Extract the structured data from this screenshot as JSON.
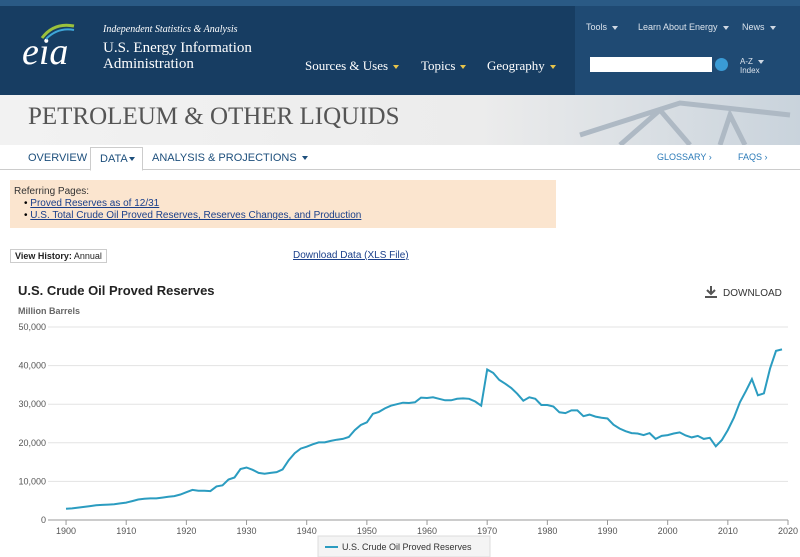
{
  "header": {
    "logo": "eia",
    "tagline": "Independent Statistics & Analysis",
    "agency_line1": "U.S. Energy Information",
    "agency_line2": "Administration",
    "nav": [
      "Sources & Uses",
      "Topics",
      "Geography"
    ],
    "top_links": [
      "Tools",
      "Learn About Energy",
      "News"
    ],
    "az": "A-Z",
    "index": "Index"
  },
  "banner": {
    "title": "PETROLEUM & OTHER LIQUIDS"
  },
  "tabs": [
    "OVERVIEW",
    "DATA",
    "ANALYSIS & PROJECTIONS"
  ],
  "right_links": [
    "GLOSSARY ›",
    "FAQS ›"
  ],
  "referring": {
    "heading": "Referring Pages:",
    "links": [
      "Proved Reserves as of 12/31",
      "U.S. Total Crude Oil Proved Reserves, Reserves Changes, and Production"
    ]
  },
  "view_history": {
    "label": "View History:",
    "value": "Annual"
  },
  "download_data": "Download Data (XLS File)",
  "download_button": "DOWNLOAD",
  "chart_data": {
    "type": "line",
    "title": "U.S. Crude Oil Proved Reserves",
    "y_axis_label": "Million Barrels",
    "x": [
      1900,
      1901,
      1902,
      1903,
      1904,
      1905,
      1906,
      1907,
      1908,
      1909,
      1910,
      1911,
      1912,
      1913,
      1914,
      1915,
      1916,
      1917,
      1918,
      1919,
      1920,
      1921,
      1922,
      1923,
      1924,
      1925,
      1926,
      1927,
      1928,
      1929,
      1930,
      1931,
      1932,
      1933,
      1934,
      1935,
      1936,
      1937,
      1938,
      1939,
      1940,
      1941,
      1942,
      1943,
      1944,
      1945,
      1946,
      1947,
      1948,
      1949,
      1950,
      1951,
      1952,
      1953,
      1954,
      1955,
      1956,
      1957,
      1958,
      1959,
      1960,
      1961,
      1962,
      1963,
      1964,
      1965,
      1966,
      1967,
      1968,
      1969,
      1970,
      1971,
      1972,
      1973,
      1974,
      1975,
      1976,
      1977,
      1978,
      1979,
      1980,
      1981,
      1982,
      1983,
      1984,
      1985,
      1986,
      1987,
      1988,
      1989,
      1990,
      1991,
      1992,
      1993,
      1994,
      1995,
      1996,
      1997,
      1998,
      1999,
      2000,
      2001,
      2002,
      2003,
      2004,
      2005,
      2006,
      2007,
      2008,
      2009,
      2010,
      2011,
      2012,
      2013,
      2014,
      2015,
      2016,
      2017,
      2018,
      2019
    ],
    "series": [
      {
        "name": "U.S. Crude Oil Proved Reserves",
        "color": "#2b9cc0",
        "values": [
          2900,
          3000,
          3200,
          3400,
          3600,
          3800,
          3900,
          4000,
          4100,
          4300,
          4500,
          4900,
          5300,
          5500,
          5600,
          5600,
          5800,
          6000,
          6200,
          6600,
          7200,
          7800,
          7600,
          7600,
          7500,
          8700,
          9000,
          10500,
          11000,
          13200,
          13600,
          13000,
          12200,
          12000,
          12200,
          12400,
          13100,
          15500,
          17300,
          18500,
          19000,
          19600,
          20100,
          20100,
          20500,
          20800,
          21000,
          21500,
          23300,
          24600,
          25300,
          27500,
          28000,
          28900,
          29600,
          30000,
          30400,
          30300,
          30500,
          31700,
          31600,
          31800,
          31400,
          31000,
          31000,
          31400,
          31500,
          31400,
          30700,
          29600,
          39000,
          38100,
          36300,
          35300,
          34200,
          32700,
          30900,
          31800,
          31400,
          29800,
          29800,
          29400,
          27900,
          27700,
          28400,
          28400,
          26900,
          27300,
          26800,
          26500,
          26300,
          24700,
          23700,
          23000,
          22500,
          22400,
          22000,
          22500,
          21000,
          21800,
          22000,
          22400,
          22700,
          21900,
          21400,
          21800,
          21000,
          21300,
          19100,
          20700,
          23300,
          26500,
          30500,
          33400,
          36500,
          32300,
          32800,
          39200,
          43800,
          44200
        ]
      }
    ],
    "xlim": [
      1897,
      2020
    ],
    "ylim": [
      0,
      50000
    ],
    "xticks": [
      1900,
      1910,
      1920,
      1930,
      1940,
      1950,
      1960,
      1970,
      1980,
      1990,
      2000,
      2010,
      2020
    ],
    "yticks": [
      0,
      {
        "value": 10000,
        "label": "10,000"
      },
      {
        "value": 20000,
        "label": "20,000"
      },
      {
        "value": 30000,
        "label": "30,000"
      },
      {
        "value": 40000,
        "label": "40,000"
      },
      {
        "value": 50000,
        "label": "50,000"
      }
    ]
  }
}
